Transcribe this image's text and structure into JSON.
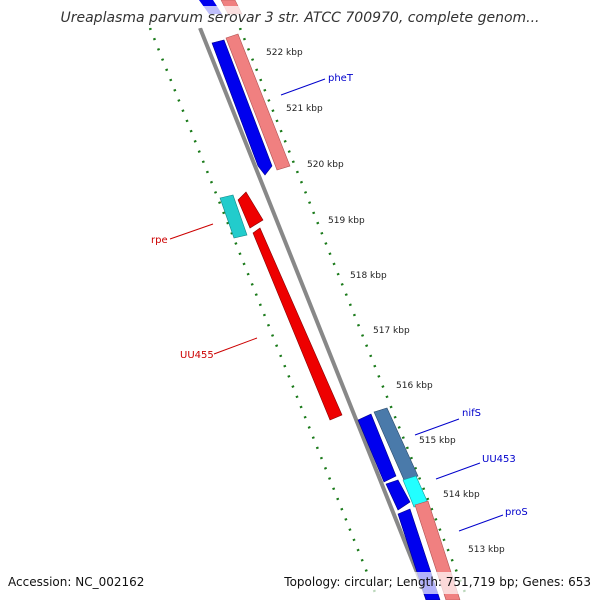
{
  "title": "Ureaplasma parvum serovar 3 str. ATCC 700970, complete genom...",
  "footer": {
    "accession": "Accession: NC_002162",
    "topology": "Topology: circular; Length: 751,719 bp; Genes: 653"
  },
  "ticks": [
    "522 kbp",
    "521 kbp",
    "520 kbp",
    "519 kbp",
    "518 kbp",
    "517 kbp",
    "516 kbp",
    "515 kbp",
    "514 kbp",
    "513 kbp"
  ],
  "genes": [
    {
      "name": "pheT",
      "color": "#0000cc"
    },
    {
      "name": "rpe",
      "color": "#cc0000"
    },
    {
      "name": "UU455",
      "color": "#cc0000"
    },
    {
      "name": "nifS",
      "color": "#0000cc"
    },
    {
      "name": "UU453",
      "color": "#0000cc"
    },
    {
      "name": "proS",
      "color": "#0000cc"
    }
  ],
  "colors": {
    "backbone": "#888888",
    "tick_track": "#1a7a1a",
    "forward_gene": "#0000ee",
    "reverse_gene": "#ee0000",
    "rna_light_red": "#f08080",
    "cyan": "#22cccc",
    "steel_blue": "#4a7aaa"
  }
}
